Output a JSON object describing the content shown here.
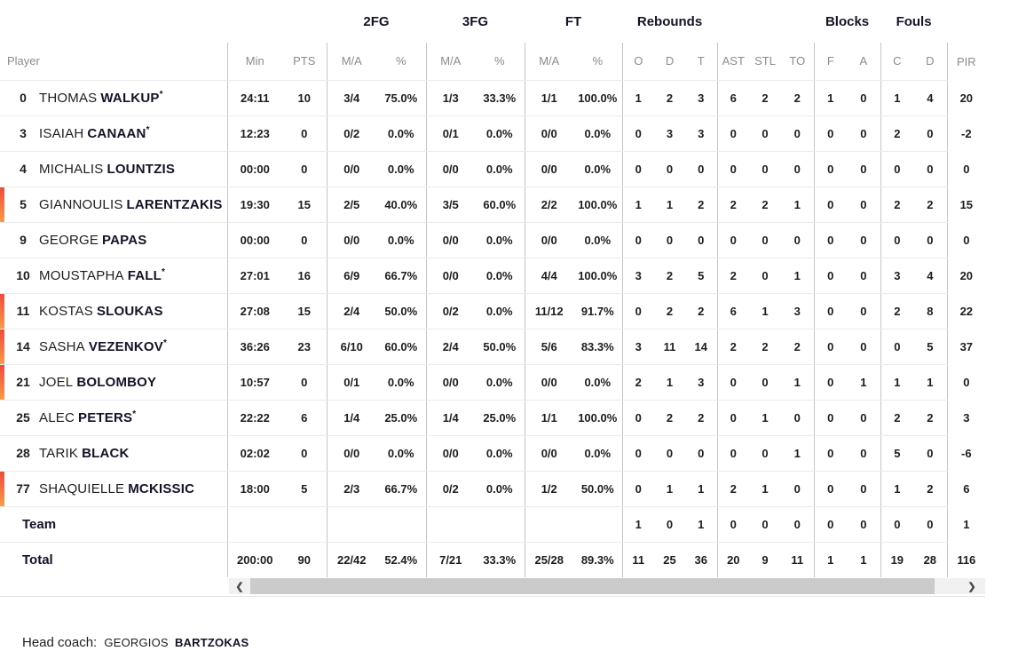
{
  "table": {
    "header_groups": [
      {
        "label": "",
        "cols": [
          "Player"
        ]
      },
      {
        "label": "",
        "cols": [
          "Min",
          "PTS"
        ]
      },
      {
        "label": "2FG",
        "cols": [
          "M/A",
          "%"
        ]
      },
      {
        "label": "3FG",
        "cols": [
          "M/A",
          "%"
        ]
      },
      {
        "label": "FT",
        "cols": [
          "M/A",
          "%"
        ]
      },
      {
        "label": "Rebounds",
        "cols": [
          "O",
          "D",
          "T"
        ]
      },
      {
        "label": "",
        "cols": [
          "AST",
          "STL",
          "TO"
        ]
      },
      {
        "label": "Blocks",
        "cols": [
          "F",
          "A"
        ]
      },
      {
        "label": "Fouls",
        "cols": [
          "C",
          "D"
        ]
      },
      {
        "label": "",
        "cols": [
          "PIR"
        ]
      }
    ],
    "players": [
      {
        "number": "0",
        "first": "THOMAS",
        "last": "WALKUP",
        "starter": true,
        "on_court": false,
        "stats": [
          "24:11",
          "10",
          "3/4",
          "75.0%",
          "1/3",
          "33.3%",
          "1/1",
          "100.0%",
          "1",
          "2",
          "3",
          "6",
          "2",
          "2",
          "1",
          "0",
          "1",
          "4",
          "20"
        ]
      },
      {
        "number": "3",
        "first": "ISAIAH",
        "last": "CANAAN",
        "starter": true,
        "on_court": false,
        "stats": [
          "12:23",
          "0",
          "0/2",
          "0.0%",
          "0/1",
          "0.0%",
          "0/0",
          "0.0%",
          "0",
          "3",
          "3",
          "0",
          "0",
          "0",
          "0",
          "0",
          "2",
          "0",
          "-2"
        ]
      },
      {
        "number": "4",
        "first": "MICHALIS",
        "last": "LOUNTZIS",
        "starter": false,
        "on_court": false,
        "stats": [
          "00:00",
          "0",
          "0/0",
          "0.0%",
          "0/0",
          "0.0%",
          "0/0",
          "0.0%",
          "0",
          "0",
          "0",
          "0",
          "0",
          "0",
          "0",
          "0",
          "0",
          "0",
          "0"
        ]
      },
      {
        "number": "5",
        "first": "GIANNOULIS",
        "last": "LARENTZAKIS",
        "starter": false,
        "on_court": true,
        "stats": [
          "19:30",
          "15",
          "2/5",
          "40.0%",
          "3/5",
          "60.0%",
          "2/2",
          "100.0%",
          "1",
          "1",
          "2",
          "2",
          "2",
          "1",
          "0",
          "0",
          "2",
          "2",
          "15"
        ]
      },
      {
        "number": "9",
        "first": "GEORGE",
        "last": "PAPAS",
        "starter": false,
        "on_court": false,
        "stats": [
          "00:00",
          "0",
          "0/0",
          "0.0%",
          "0/0",
          "0.0%",
          "0/0",
          "0.0%",
          "0",
          "0",
          "0",
          "0",
          "0",
          "0",
          "0",
          "0",
          "0",
          "0",
          "0"
        ]
      },
      {
        "number": "10",
        "first": "MOUSTAPHA",
        "last": "FALL",
        "starter": true,
        "on_court": false,
        "stats": [
          "27:01",
          "16",
          "6/9",
          "66.7%",
          "0/0",
          "0.0%",
          "4/4",
          "100.0%",
          "3",
          "2",
          "5",
          "2",
          "0",
          "1",
          "0",
          "0",
          "3",
          "4",
          "20"
        ]
      },
      {
        "number": "11",
        "first": "KOSTAS",
        "last": "SLOUKAS",
        "starter": false,
        "on_court": true,
        "stats": [
          "27:08",
          "15",
          "2/4",
          "50.0%",
          "0/2",
          "0.0%",
          "11/12",
          "91.7%",
          "0",
          "2",
          "2",
          "6",
          "1",
          "3",
          "0",
          "0",
          "2",
          "8",
          "22"
        ]
      },
      {
        "number": "14",
        "first": "SASHA",
        "last": "VEZENKOV",
        "starter": true,
        "on_court": true,
        "stats": [
          "36:26",
          "23",
          "6/10",
          "60.0%",
          "2/4",
          "50.0%",
          "5/6",
          "83.3%",
          "3",
          "11",
          "14",
          "2",
          "2",
          "2",
          "0",
          "0",
          "0",
          "5",
          "37"
        ]
      },
      {
        "number": "21",
        "first": "JOEL",
        "last": "BOLOMBOY",
        "starter": false,
        "on_court": true,
        "stats": [
          "10:57",
          "0",
          "0/1",
          "0.0%",
          "0/0",
          "0.0%",
          "0/0",
          "0.0%",
          "2",
          "1",
          "3",
          "0",
          "0",
          "1",
          "0",
          "1",
          "1",
          "1",
          "0"
        ]
      },
      {
        "number": "25",
        "first": "ALEC",
        "last": "PETERS",
        "starter": true,
        "on_court": false,
        "stats": [
          "22:22",
          "6",
          "1/4",
          "25.0%",
          "1/4",
          "25.0%",
          "1/1",
          "100.0%",
          "0",
          "2",
          "2",
          "0",
          "1",
          "0",
          "0",
          "0",
          "2",
          "2",
          "3"
        ]
      },
      {
        "number": "28",
        "first": "TARIK",
        "last": "BLACK",
        "starter": false,
        "on_court": false,
        "stats": [
          "02:02",
          "0",
          "0/0",
          "0.0%",
          "0/0",
          "0.0%",
          "0/0",
          "0.0%",
          "0",
          "0",
          "0",
          "0",
          "0",
          "1",
          "0",
          "0",
          "5",
          "0",
          "-6"
        ]
      },
      {
        "number": "77",
        "first": "SHAQUIELLE",
        "last": "MCKISSIC",
        "starter": false,
        "on_court": true,
        "stats": [
          "18:00",
          "5",
          "2/3",
          "66.7%",
          "0/2",
          "0.0%",
          "1/2",
          "50.0%",
          "0",
          "1",
          "1",
          "2",
          "1",
          "0",
          "0",
          "0",
          "1",
          "2",
          "6"
        ]
      }
    ],
    "team_row": {
      "label": "Team",
      "stats": [
        "",
        "",
        "",
        "",
        "",
        "",
        "",
        "",
        "1",
        "0",
        "1",
        "0",
        "0",
        "0",
        "0",
        "0",
        "0",
        "0",
        "1"
      ]
    },
    "total_row": {
      "label": "Total",
      "stats": [
        "200:00",
        "90",
        "22/42",
        "52.4%",
        "7/21",
        "33.3%",
        "25/28",
        "89.3%",
        "11",
        "25",
        "36",
        "20",
        "9",
        "11",
        "1",
        "1",
        "19",
        "28",
        "116"
      ]
    },
    "starter_mark": "*"
  },
  "scrollbar": {
    "left_arrow": "❮",
    "right_arrow": "❯"
  },
  "footer": {
    "label": "Head coach:",
    "coach_first": "GEORGIOS",
    "coach_last": "BARTZOKAS"
  },
  "colors": {
    "on_court_gradient_top": "#ee4c3b",
    "on_court_gradient_bottom": "#f89c4a",
    "group_header_text": "#131327",
    "column_header_text": "#8b8b8b",
    "vertical_divider": "#c5c5c5",
    "horizontal_divider": "#ebebeb",
    "scrollbar_thumb": "#cbcbcb",
    "scrollbar_track": "#f1f1f1"
  }
}
